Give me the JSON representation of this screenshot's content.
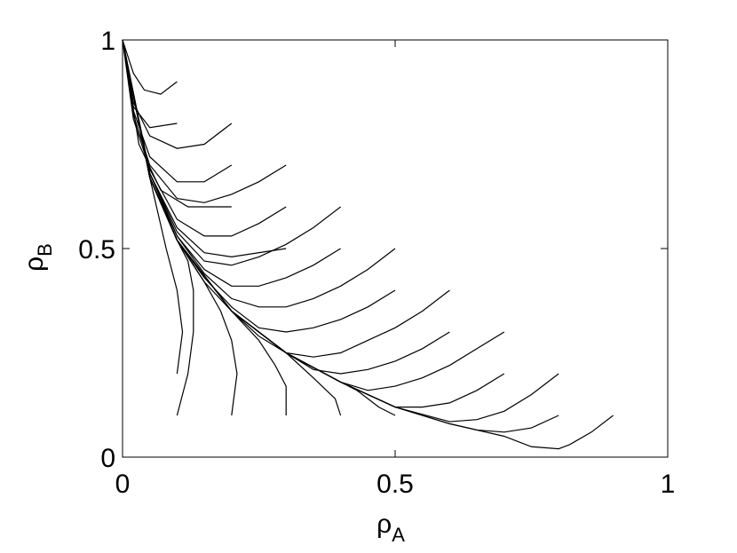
{
  "chart_data": {
    "type": "line",
    "xlabel": "ρ",
    "xlabel_subscript": "A",
    "ylabel": "ρ",
    "ylabel_subscript": "B",
    "xlim": [
      0,
      1
    ],
    "ylim": [
      0,
      1
    ],
    "xticks": [
      0,
      0.5,
      1
    ],
    "yticks": [
      0,
      0.5,
      1
    ],
    "color": "#000000",
    "grid": false,
    "series": [
      {
        "x": [
          0.1,
          0.07,
          0.04,
          0.02,
          0
        ],
        "values": [
          0.9,
          0.87,
          0.88,
          0.92,
          1
        ]
      },
      {
        "x": [
          0.1,
          0.05,
          0.02,
          0
        ],
        "values": [
          0.8,
          0.79,
          0.84,
          1
        ]
      },
      {
        "x": [
          0.2,
          0.15,
          0.1,
          0.05,
          0.02,
          0
        ],
        "values": [
          0.8,
          0.75,
          0.74,
          0.77,
          0.85,
          1
        ]
      },
      {
        "x": [
          0.2,
          0.15,
          0.1,
          0.05,
          0.02,
          0
        ],
        "values": [
          0.7,
          0.66,
          0.66,
          0.72,
          0.83,
          1
        ]
      },
      {
        "x": [
          0.2,
          0.12,
          0.07,
          0.03,
          0
        ],
        "values": [
          0.6,
          0.6,
          0.64,
          0.75,
          1
        ]
      },
      {
        "x": [
          0.3,
          0.25,
          0.2,
          0.15,
          0.1,
          0.05,
          0.02,
          0
        ],
        "values": [
          0.7,
          0.66,
          0.63,
          0.61,
          0.62,
          0.7,
          0.82,
          1
        ]
      },
      {
        "x": [
          0.3,
          0.25,
          0.2,
          0.15,
          0.1,
          0.05,
          0.02,
          0
        ],
        "values": [
          0.6,
          0.56,
          0.53,
          0.53,
          0.57,
          0.69,
          0.81,
          1
        ]
      },
      {
        "x": [
          0.3,
          0.2,
          0.15,
          0.1,
          0.05,
          0
        ],
        "values": [
          0.5,
          0.48,
          0.49,
          0.55,
          0.68,
          1
        ]
      },
      {
        "x": [
          0.4,
          0.35,
          0.3,
          0.25,
          0.2,
          0.15,
          0.1,
          0.05,
          0
        ],
        "values": [
          0.6,
          0.55,
          0.51,
          0.48,
          0.46,
          0.47,
          0.54,
          0.68,
          1
        ]
      },
      {
        "x": [
          0.4,
          0.35,
          0.3,
          0.25,
          0.2,
          0.15,
          0.1,
          0.05,
          0
        ],
        "values": [
          0.5,
          0.46,
          0.43,
          0.41,
          0.41,
          0.45,
          0.53,
          0.68,
          1
        ]
      },
      {
        "x": [
          0.5,
          0.45,
          0.4,
          0.35,
          0.3,
          0.25,
          0.2,
          0.15,
          0.1,
          0.05,
          0
        ],
        "values": [
          0.5,
          0.45,
          0.41,
          0.38,
          0.36,
          0.36,
          0.38,
          0.44,
          0.53,
          0.67,
          1
        ]
      },
      {
        "x": [
          0.5,
          0.45,
          0.4,
          0.35,
          0.3,
          0.25,
          0.2,
          0.15,
          0.1,
          0.05,
          0
        ],
        "values": [
          0.4,
          0.36,
          0.33,
          0.31,
          0.3,
          0.31,
          0.36,
          0.43,
          0.52,
          0.67,
          1
        ]
      },
      {
        "x": [
          0.6,
          0.55,
          0.5,
          0.45,
          0.4,
          0.35,
          0.3,
          0.25,
          0.2,
          0.15,
          0.1,
          0.05,
          0
        ],
        "values": [
          0.4,
          0.35,
          0.31,
          0.28,
          0.25,
          0.24,
          0.25,
          0.29,
          0.35,
          0.42,
          0.52,
          0.67,
          1
        ]
      },
      {
        "x": [
          0.6,
          0.55,
          0.5,
          0.45,
          0.4,
          0.35,
          0.3,
          0.2,
          0.1,
          0.05,
          0
        ],
        "values": [
          0.3,
          0.26,
          0.23,
          0.21,
          0.2,
          0.21,
          0.25,
          0.35,
          0.52,
          0.67,
          1
        ]
      },
      {
        "x": [
          0.7,
          0.65,
          0.6,
          0.55,
          0.5,
          0.45,
          0.4,
          0.3,
          0.2,
          0.1,
          0.05,
          0
        ],
        "values": [
          0.3,
          0.26,
          0.22,
          0.19,
          0.17,
          0.16,
          0.18,
          0.25,
          0.35,
          0.52,
          0.67,
          1
        ]
      },
      {
        "x": [
          0.7,
          0.65,
          0.6,
          0.55,
          0.5,
          0.4,
          0.3,
          0.2,
          0.1,
          0.05,
          0
        ],
        "values": [
          0.2,
          0.16,
          0.13,
          0.12,
          0.12,
          0.18,
          0.25,
          0.35,
          0.52,
          0.67,
          1
        ]
      },
      {
        "x": [
          0.8,
          0.75,
          0.7,
          0.65,
          0.6,
          0.5,
          0.4,
          0.3,
          0.2,
          0.1,
          0.05,
          0
        ],
        "values": [
          0.2,
          0.15,
          0.11,
          0.09,
          0.085,
          0.12,
          0.18,
          0.25,
          0.35,
          0.52,
          0.67,
          1
        ]
      },
      {
        "x": [
          0.8,
          0.75,
          0.7,
          0.65,
          0.6,
          0.5,
          0.4,
          0.3,
          0.2,
          0.1,
          0.05,
          0
        ],
        "values": [
          0.1,
          0.07,
          0.06,
          0.065,
          0.08,
          0.12,
          0.18,
          0.25,
          0.35,
          0.52,
          0.67,
          1
        ]
      },
      {
        "x": [
          0.9,
          0.86,
          0.82,
          0.8,
          0.75,
          0.7,
          0.6,
          0.5,
          0.4,
          0.3,
          0.2,
          0.1,
          0.05,
          0
        ],
        "values": [
          0.1,
          0.06,
          0.03,
          0.02,
          0.025,
          0.05,
          0.08,
          0.12,
          0.18,
          0.25,
          0.35,
          0.52,
          0.67,
          1
        ]
      },
      {
        "x": [
          0.1,
          0.11,
          0.1,
          0.08,
          0.05,
          0
        ],
        "values": [
          0.2,
          0.3,
          0.4,
          0.5,
          0.67,
          1
        ]
      },
      {
        "x": [
          0.1,
          0.12,
          0.13,
          0.13,
          0.12,
          0.1,
          0.05,
          0
        ],
        "values": [
          0.1,
          0.2,
          0.3,
          0.4,
          0.47,
          0.52,
          0.67,
          1
        ]
      },
      {
        "x": [
          0.2,
          0.21,
          0.2,
          0.18,
          0.15,
          0.1,
          0.05,
          0
        ],
        "values": [
          0.1,
          0.2,
          0.28,
          0.35,
          0.42,
          0.52,
          0.67,
          1
        ]
      },
      {
        "x": [
          0.3,
          0.3,
          0.28,
          0.25,
          0.2,
          0.1,
          0.05,
          0
        ],
        "values": [
          0.1,
          0.17,
          0.22,
          0.28,
          0.35,
          0.52,
          0.67,
          1
        ]
      },
      {
        "x": [
          0.4,
          0.39,
          0.35,
          0.3,
          0.2,
          0.1,
          0.05,
          0
        ],
        "values": [
          0.1,
          0.14,
          0.19,
          0.25,
          0.35,
          0.52,
          0.67,
          1
        ]
      },
      {
        "x": [
          0.5,
          0.47,
          0.43,
          0.4,
          0.3,
          0.2,
          0.1,
          0.05,
          0
        ],
        "values": [
          0.1,
          0.12,
          0.16,
          0.18,
          0.25,
          0.35,
          0.52,
          0.67,
          1
        ]
      }
    ]
  }
}
